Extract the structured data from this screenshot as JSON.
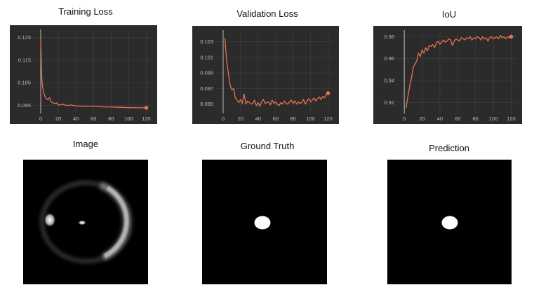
{
  "chart_data": [
    {
      "type": "line",
      "title": "Training Loss",
      "xlabel": "",
      "ylabel": "",
      "xlim": [
        -8,
        126
      ],
      "ylim": [
        0.0915,
        0.1285
      ],
      "xticks": [
        0,
        20,
        40,
        60,
        80,
        100,
        120
      ],
      "yticks": [
        0.095,
        0.105,
        0.115,
        0.125
      ],
      "ytick_labels": [
        "0.095",
        "0.105",
        "0.115",
        "0.125"
      ],
      "grid": true,
      "line_color": "#e8724f",
      "series": [
        {
          "x": [
            0,
            1,
            2,
            3,
            4,
            5,
            6,
            8,
            10,
            12,
            14,
            16,
            18,
            20,
            25,
            30,
            35,
            40,
            50,
            60,
            70,
            80,
            90,
            100,
            110,
            120
          ],
          "y": [
            0.1245,
            0.1085,
            0.1035,
            0.1015,
            0.0998,
            0.0988,
            0.0982,
            0.0975,
            0.0985,
            0.0965,
            0.0962,
            0.0958,
            0.0962,
            0.0952,
            0.0955,
            0.095,
            0.0952,
            0.0948,
            0.0947,
            0.0946,
            0.0944,
            0.0943,
            0.0942,
            0.0941,
            0.094,
            0.094
          ]
        }
      ]
    },
    {
      "type": "line",
      "title": "Validation Loss",
      "xlabel": "",
      "ylabel": "",
      "xlim": [
        -8,
        126
      ],
      "ylim": [
        0.0938,
        0.1045
      ],
      "xticks": [
        0,
        20,
        40,
        60,
        80,
        100,
        120
      ],
      "yticks": [
        0.095,
        0.097,
        0.099,
        0.101,
        0.103
      ],
      "ytick_labels": [
        "0.095",
        "0.097",
        "0.099",
        "0.101",
        "0.103"
      ],
      "grid": true,
      "line_color": "#e8724f",
      "series": [
        {
          "x": [
            2,
            4,
            6,
            8,
            10,
            12,
            14,
            16,
            18,
            20,
            22,
            24,
            26,
            28,
            30,
            32,
            34,
            36,
            38,
            40,
            42,
            44,
            46,
            48,
            50,
            52,
            54,
            56,
            58,
            60,
            62,
            64,
            66,
            68,
            70,
            72,
            74,
            76,
            78,
            80,
            82,
            84,
            86,
            88,
            90,
            92,
            94,
            96,
            98,
            100,
            102,
            104,
            106,
            108,
            110,
            112,
            114,
            116,
            118,
            120
          ],
          "y": [
            0.1035,
            0.1005,
            0.099,
            0.0975,
            0.0968,
            0.097,
            0.0958,
            0.0955,
            0.0952,
            0.0956,
            0.0951,
            0.0963,
            0.095,
            0.0954,
            0.0952,
            0.095,
            0.0951,
            0.0955,
            0.0948,
            0.0952,
            0.0947,
            0.0953,
            0.0956,
            0.0951,
            0.0952,
            0.0953,
            0.0949,
            0.0955,
            0.0951,
            0.0953,
            0.095,
            0.0948,
            0.0952,
            0.095,
            0.0954,
            0.0951,
            0.095,
            0.0953,
            0.0955,
            0.0951,
            0.0954,
            0.095,
            0.0953,
            0.0951,
            0.0952,
            0.0956,
            0.095,
            0.0954,
            0.0957,
            0.0953,
            0.0955,
            0.0958,
            0.0954,
            0.0957,
            0.0959,
            0.0956,
            0.096,
            0.0958,
            0.0962,
            0.0964
          ]
        }
      ]
    },
    {
      "type": "line",
      "title": "IoU",
      "xlabel": "",
      "ylabel": "",
      "xlim": [
        -8,
        126
      ],
      "ylim": [
        0.91,
        0.986
      ],
      "xticks": [
        0,
        20,
        40,
        60,
        80,
        100,
        120
      ],
      "yticks": [
        0.92,
        0.94,
        0.96,
        0.98
      ],
      "ytick_labels": [
        "0.92",
        "0.94",
        "0.96",
        "0.98"
      ],
      "grid": true,
      "line_color": "#e8724f",
      "series": [
        {
          "x": [
            2,
            4,
            6,
            8,
            10,
            12,
            14,
            16,
            18,
            20,
            22,
            24,
            26,
            28,
            30,
            32,
            34,
            36,
            38,
            40,
            42,
            44,
            46,
            48,
            50,
            52,
            54,
            56,
            58,
            60,
            62,
            64,
            66,
            68,
            70,
            72,
            74,
            76,
            78,
            80,
            82,
            84,
            86,
            88,
            90,
            92,
            94,
            96,
            98,
            100,
            102,
            104,
            106,
            108,
            110,
            112,
            114,
            116,
            118,
            120
          ],
          "y": [
            0.915,
            0.925,
            0.935,
            0.942,
            0.952,
            0.955,
            0.958,
            0.965,
            0.962,
            0.968,
            0.965,
            0.97,
            0.967,
            0.972,
            0.971,
            0.973,
            0.97,
            0.974,
            0.976,
            0.973,
            0.975,
            0.977,
            0.975,
            0.976,
            0.978,
            0.977,
            0.972,
            0.976,
            0.978,
            0.977,
            0.976,
            0.979,
            0.978,
            0.977,
            0.979,
            0.978,
            0.98,
            0.977,
            0.979,
            0.978,
            0.98,
            0.979,
            0.977,
            0.98,
            0.978,
            0.979,
            0.976,
            0.979,
            0.98,
            0.978,
            0.979,
            0.98,
            0.978,
            0.981,
            0.979,
            0.98,
            0.978,
            0.98,
            0.979,
            0.98
          ]
        }
      ]
    }
  ],
  "panels": [
    {
      "title": "Image"
    },
    {
      "title": "Ground Truth"
    },
    {
      "title": "Prediction"
    }
  ]
}
